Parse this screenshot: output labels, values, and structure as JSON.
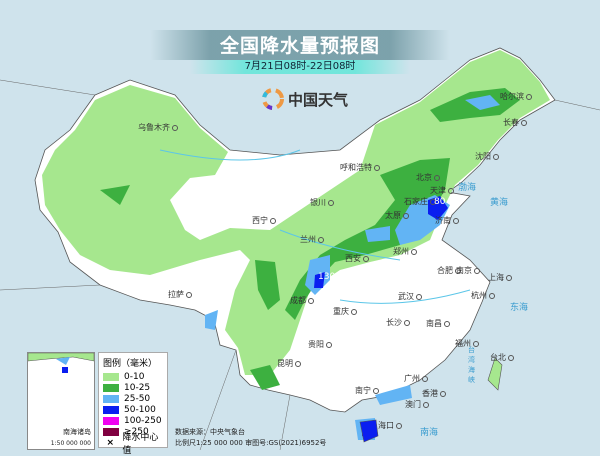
{
  "header": {
    "title": "全国降水量预报图",
    "subtitle": "7月21日08时-22日08时",
    "logo_text": "中国天气"
  },
  "cities": [
    "乌鲁木齐",
    "哈尔滨",
    "长春",
    "沈阳",
    "呼和浩特",
    "北京",
    "天津",
    "石家庄",
    "太原",
    "济南",
    "银川",
    "西宁",
    "兰州",
    "西安",
    "郑州",
    "合肥",
    "南京",
    "上海",
    "杭州",
    "武汉",
    "成都",
    "重庆",
    "拉萨",
    "长沙",
    "南昌",
    "贵阳",
    "昆明",
    "福州",
    "台北",
    "南宁",
    "广州",
    "香港",
    "澳门",
    "海口"
  ],
  "seas": [
    "渤海",
    "黄海",
    "东海",
    "台湾海峡",
    "南海"
  ],
  "rain_centers": [
    "80",
    "130"
  ],
  "legend": {
    "title": "图例（毫米）",
    "items": [
      {
        "label": "0-10",
        "color": "#a6e78e"
      },
      {
        "label": "10-25",
        "color": "#3db040"
      },
      {
        "label": "25-50",
        "color": "#62b4f4"
      },
      {
        "label": "50-100",
        "color": "#0a1ef0"
      },
      {
        "label": "100-250",
        "color": "#f000f0"
      },
      {
        "label": "≥250",
        "color": "#800040"
      }
    ],
    "center_label": "降水中心值",
    "center_icon": "cross-icon"
  },
  "inset": {
    "label": "南海诸岛",
    "scale": "1:50 000 000"
  },
  "source": {
    "line1": "数据来源：中央气象台",
    "line2": "比例尺1:25 000 000    审图号:GS(2021)6952号"
  }
}
